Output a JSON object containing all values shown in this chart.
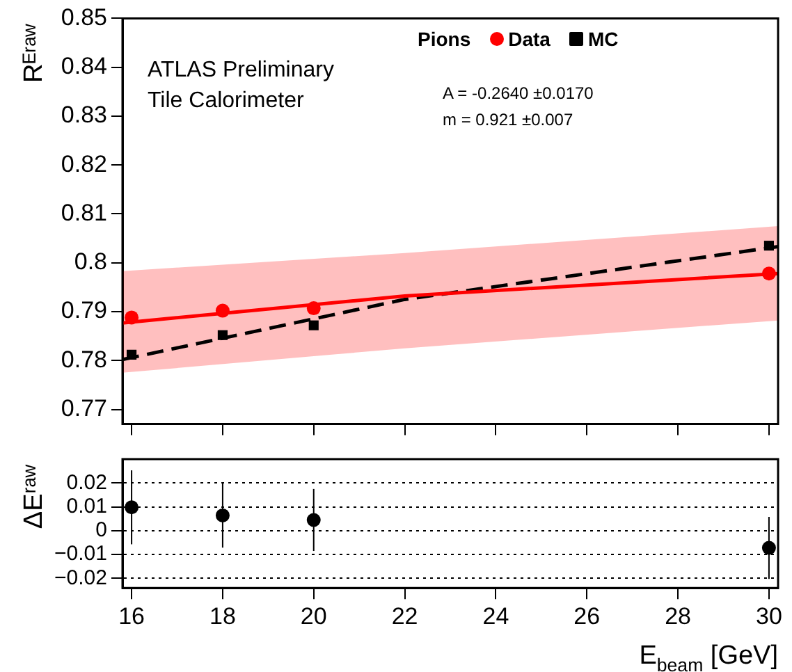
{
  "chart_data": [
    {
      "type": "scatter",
      "ylabel": "Rᴱʳᵃʷ",
      "legend_title": "Pions",
      "legend": "top right",
      "tick_labels": "y",
      "grid": false,
      "annotations": [
        "ATLAS Preliminary",
        "Tile Calorimeter",
        "A = -0.2640 ±0.0170",
        "m = 0.921 ±0.007"
      ],
      "xlim": [
        15.8,
        30.2
      ],
      "xticks": [
        {
          "value": 16,
          "label": null
        },
        {
          "value": 18,
          "label": null
        },
        {
          "value": 20,
          "label": null
        },
        {
          "value": 22,
          "label": null
        },
        {
          "value": 24,
          "label": null
        },
        {
          "value": 26,
          "label": null
        },
        {
          "value": 28,
          "label": null
        },
        {
          "value": 30,
          "label": null
        }
      ],
      "ylim": [
        0.767,
        0.85
      ],
      "yticks": [
        0.77,
        0.78,
        0.79,
        0.8,
        0.81,
        0.82,
        0.83,
        0.84,
        0.85
      ],
      "series": [
        {
          "type": "line",
          "color": "#ff0000",
          "line_style": "solid",
          "marker": "none",
          "x": [
            15.8,
            22,
            30.2
          ],
          "values": [
            0.7877,
            0.7932,
            0.7978
          ],
          "lower": [
            0.7775,
            0.7825,
            0.7882
          ],
          "upper": [
            0.7983,
            0.802,
            0.8075
          ]
        },
        {
          "type": "line",
          "color": "#000000",
          "line_style": "dashed",
          "marker": "none",
          "x": [
            15.8,
            22,
            30.2
          ],
          "values": [
            0.7802,
            0.7925,
            0.8033
          ]
        },
        {
          "type": "scatter",
          "name": "Data",
          "color": "#ff0000",
          "marker": "circle",
          "x": [
            16,
            18,
            20,
            30
          ],
          "values": [
            0.7888,
            0.7902,
            0.7907,
            0.7978
          ]
        },
        {
          "type": "scatter",
          "name": "MC",
          "color": "#000000",
          "marker": "square",
          "x": [
            16,
            18,
            20,
            30
          ],
          "values": [
            0.7812,
            0.7852,
            0.7872,
            0.8035
          ]
        }
      ]
    },
    {
      "type": "scatter",
      "ylabel": "ΔEʳᵃʷ",
      "xlabel": "E$_{beam}$ [GeV]",
      "grid": "y",
      "xlim": [
        15.8,
        30.2
      ],
      "xticks": [
        16,
        18,
        20,
        22,
        24,
        26,
        28,
        30
      ],
      "ylim": [
        -0.024,
        0.03
      ],
      "yticks": [
        {
          "value": -0.02,
          "label": "−0.02"
        },
        {
          "value": -0.01,
          "label": "−0.01"
        },
        0,
        0.01,
        0.02
      ],
      "series": [
        {
          "type": "scatter",
          "color": "#000000",
          "marker": "circle",
          "x": [
            16,
            18,
            20,
            30
          ],
          "values": [
            0.0098,
            0.0064,
            0.0045,
            -0.0072
          ],
          "errors": [
            0.0155,
            0.0135,
            0.013,
            0.013
          ]
        }
      ]
    }
  ]
}
